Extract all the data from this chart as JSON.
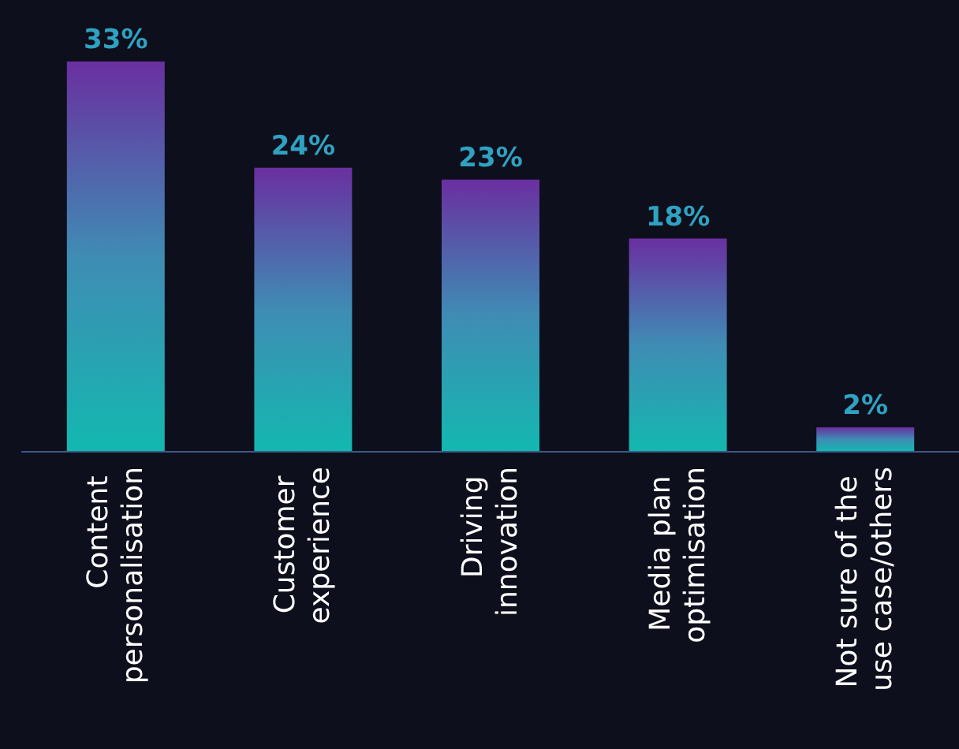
{
  "chart_data": {
    "type": "bar",
    "categories": [
      "Content personalisation",
      "Customer experience",
      "Driving innovation",
      "Media plan optimisation",
      "Not sure of the use case/others"
    ],
    "values": [
      33,
      24,
      23,
      18,
      2
    ],
    "value_labels": [
      "33%",
      "24%",
      "23%",
      "18%",
      "2%"
    ],
    "color": "#3f8cb4"
  }
}
